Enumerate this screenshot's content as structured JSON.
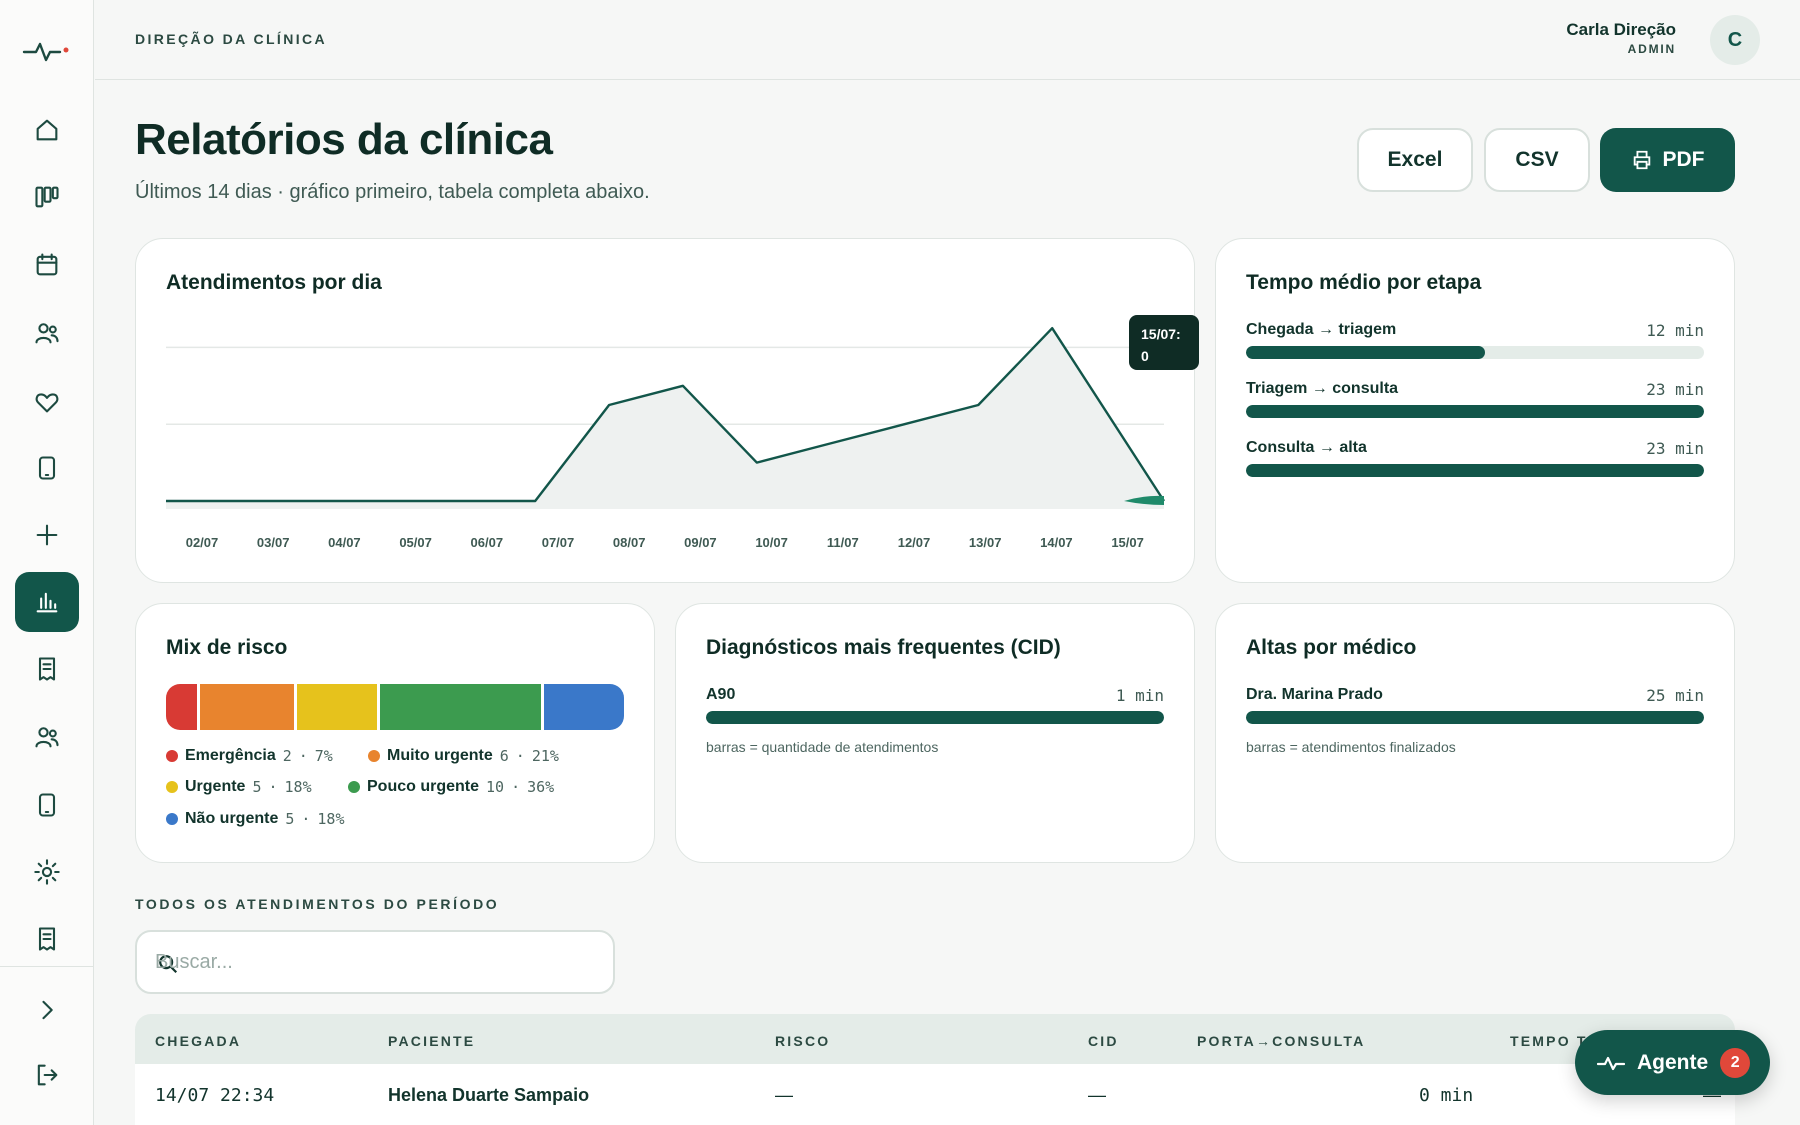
{
  "header": {
    "org": "DIREÇÃO DA CLÍNICA",
    "user_name": "Carla Direção",
    "user_role": "ADMIN",
    "avatar_initial": "C"
  },
  "page": {
    "title": "Relatórios da clínica",
    "subtitle": "Últimos 14 dias · gráfico primeiro, tabela completa abaixo."
  },
  "actions": {
    "excel": "Excel",
    "csv": "CSV",
    "pdf": "PDF"
  },
  "sidebar": {
    "icons": [
      "pulse-logo",
      "home-icon",
      "board-icon",
      "calendar-icon",
      "patients-icon",
      "heart-icon",
      "tablet-icon",
      "plus-icon",
      "chart-icon",
      "document-icon",
      "team-icon",
      "device-icon",
      "settings-icon",
      "receipt-icon",
      "chevron-right-icon",
      "logout-icon"
    ],
    "active": "chart-icon"
  },
  "daily": {
    "title": "Atendimentos por dia",
    "tooltip_date": "15/07:",
    "tooltip_value": "0"
  },
  "chart_data": {
    "type": "area",
    "title": "Atendimentos por dia",
    "categories": [
      "02/07",
      "03/07",
      "04/07",
      "05/07",
      "06/07",
      "07/07",
      "08/07",
      "09/07",
      "10/07",
      "11/07",
      "12/07",
      "13/07",
      "14/07",
      "15/07"
    ],
    "values": [
      0,
      0,
      0,
      0,
      0,
      0,
      5,
      6,
      2,
      3,
      4,
      5,
      9,
      0
    ],
    "ylim": [
      0,
      10
    ],
    "grid": true,
    "line_color": "#12564a",
    "fill_color": "#eef1f0"
  },
  "stage_time": {
    "title": "Tempo médio por etapa",
    "items": [
      {
        "label": "Chegada → triagem",
        "value": "12 min",
        "minutes": 12
      },
      {
        "label": "Triagem → consulta",
        "value": "23 min",
        "minutes": 23
      },
      {
        "label": "Consulta → alta",
        "value": "23 min",
        "minutes": 23
      }
    ],
    "max_minutes": 23
  },
  "risk_mix": {
    "title": "Mix de risco",
    "items": [
      {
        "label": "Emergência",
        "count": "2",
        "pct": "7%",
        "share": 7,
        "color": "#d83a34"
      },
      {
        "label": "Muito urgente",
        "count": "6",
        "pct": "21%",
        "share": 21,
        "color": "#e8842e"
      },
      {
        "label": "Urgente",
        "count": "5",
        "pct": "18%",
        "share": 18,
        "color": "#e6c21c"
      },
      {
        "label": "Pouco urgente",
        "count": "10",
        "pct": "36%",
        "share": 36,
        "color": "#3c9b4f"
      },
      {
        "label": "Não urgente",
        "count": "5",
        "pct": "18%",
        "share": 18,
        "color": "#3a78c9"
      }
    ]
  },
  "cid": {
    "title": "Diagnósticos mais frequentes (CID)",
    "items": [
      {
        "label": "A90",
        "value": "1 min",
        "fraction": 1
      }
    ],
    "note": "barras = quantidade de atendimentos"
  },
  "altas": {
    "title": "Altas por médico",
    "items": [
      {
        "label": "Dra. Marina Prado",
        "value": "25 min",
        "fraction": 1
      }
    ],
    "note": "barras = atendimentos finalizados"
  },
  "table": {
    "section_label": "TODOS OS ATENDIMENTOS DO PERÍODO",
    "search_placeholder": "Buscar...",
    "columns": [
      "CHEGADA",
      "PACIENTE",
      "RISCO",
      "CID",
      "PORTA→CONSULTA",
      "TEMPO T"
    ],
    "rows": [
      {
        "chegada": "14/07 22:34",
        "paciente": "Helena Duarte Sampaio",
        "risco": "—",
        "cid": "—",
        "porta_consulta": "0 min",
        "tempo": "—"
      }
    ]
  },
  "agent": {
    "label": "Agente",
    "badge": "2"
  }
}
